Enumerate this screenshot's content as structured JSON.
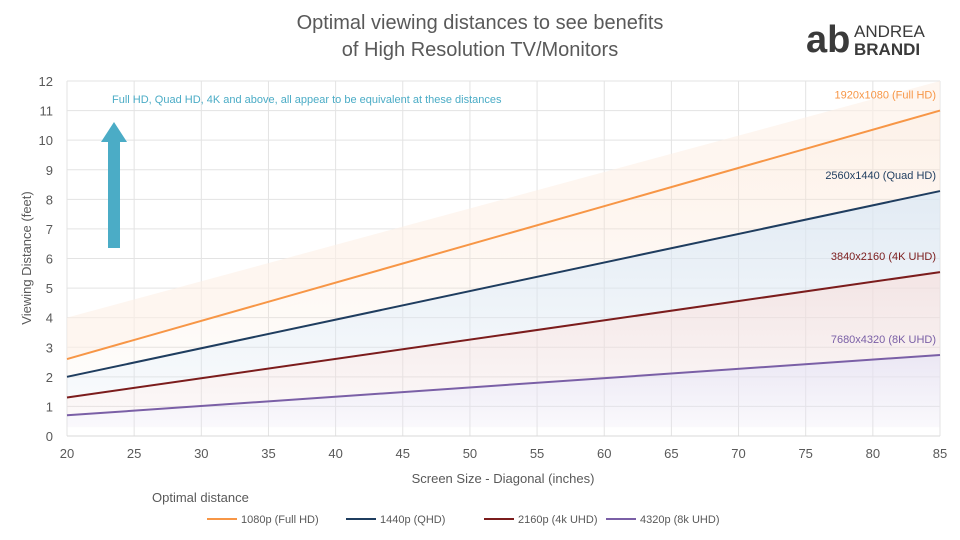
{
  "chart_data": {
    "type": "line",
    "title": [
      "Optimal viewing distances to see benefits",
      "of High Resolution TV/Monitors"
    ],
    "xlabel": "Screen Size - Diagonal (inches)",
    "ylabel": "Viewing Distance (feet)",
    "xlim": [
      20,
      85
    ],
    "ylim": [
      0,
      12
    ],
    "xticks": [
      "20",
      "25",
      "30",
      "35",
      "40",
      "45",
      "50",
      "55",
      "60",
      "65",
      "70",
      "75",
      "80",
      "85"
    ],
    "yticks": [
      "0",
      "1",
      "2",
      "3",
      "4",
      "5",
      "6",
      "7",
      "8",
      "9",
      "10",
      "11",
      "12"
    ],
    "grid": true,
    "legend_title": "Optimal distance",
    "legend_position": "bottom",
    "annotation": "Full HD, Quad HD, 4K and above, all appear to be equivalent at these distances",
    "annotation_color": "#4bacc6",
    "series": [
      {
        "name": "1080p (Full HD)",
        "label": "1920x1080 (Full HD)",
        "color": "#f79646",
        "x": [
          20,
          85
        ],
        "y": [
          2.6,
          11.0
        ]
      },
      {
        "name": "1440p (QHD)",
        "label": "2560x1440 (Quad HD)",
        "color": "#1f3d5f",
        "x": [
          20,
          85
        ],
        "y": [
          2.0,
          8.28
        ]
      },
      {
        "name": "2160p (4k UHD)",
        "label": "3840x2160 (4K UHD)",
        "color": "#7b1c1c",
        "x": [
          20,
          85
        ],
        "y": [
          1.3,
          5.54
        ]
      },
      {
        "name": "4320p (8k UHD)",
        "label": "7680x4320 (8K UHD)",
        "color": "#7a5fa6",
        "x": [
          20,
          85
        ],
        "y": [
          0.7,
          2.74
        ]
      }
    ]
  },
  "logo": {
    "mark": "ab",
    "line1": "ANDREA",
    "line2": "BRANDI"
  }
}
